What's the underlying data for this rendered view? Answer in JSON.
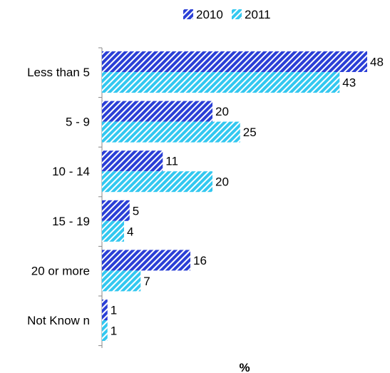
{
  "chart_data": {
    "type": "bar",
    "orientation": "horizontal",
    "categories": [
      "Less than 5",
      "5 - 9",
      "10 - 14",
      "15 - 19",
      "20 or more",
      "Not Know n"
    ],
    "series": [
      {
        "name": "2010",
        "values": [
          48,
          20,
          11,
          5,
          16,
          1
        ],
        "color": "#2b3fd6",
        "pattern": "diagonal-stripes"
      },
      {
        "name": "2011",
        "values": [
          43,
          25,
          20,
          4,
          7,
          1
        ],
        "color": "#33c8f0",
        "pattern": "diagonal-stripes"
      }
    ],
    "xlabel": "%",
    "ylabel": "",
    "xlim": [
      0,
      50
    ],
    "grid": false,
    "legend": "top",
    "data_labels": true
  }
}
